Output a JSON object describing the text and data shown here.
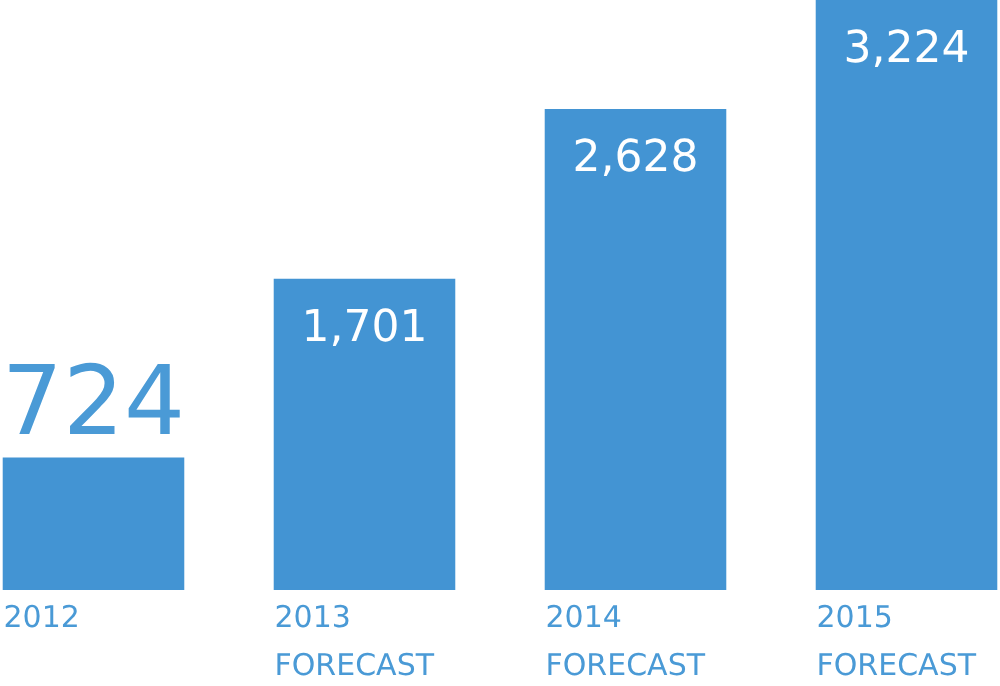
{
  "chart_data": {
    "type": "bar",
    "categories": [
      "2012",
      "2013 FORECAST",
      "2014 FORECAST",
      "2015 FORECAST"
    ],
    "values": [
      724,
      1701,
      2628,
      3224
    ],
    "color": "#4394d3",
    "value_labels": [
      "724",
      "1,701",
      "2,628",
      "3,224"
    ],
    "grid": false
  }
}
